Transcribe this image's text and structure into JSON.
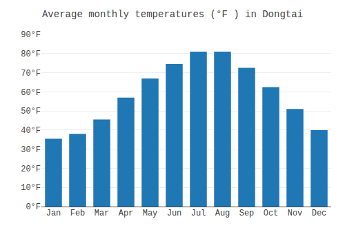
{
  "chart_data": {
    "type": "bar",
    "title": "Average monthly temperatures (°F ) in Dongtai",
    "categories": [
      "Jan",
      "Feb",
      "Mar",
      "Apr",
      "May",
      "Jun",
      "Jul",
      "Aug",
      "Sep",
      "Oct",
      "Nov",
      "Dec"
    ],
    "values": [
      35.5,
      38,
      45.5,
      57,
      67,
      74.5,
      81,
      81,
      72.5,
      62.5,
      51,
      40
    ],
    "ylim": [
      0,
      90
    ],
    "yticks": [
      {
        "value": 0,
        "label": "0°F"
      },
      {
        "value": 10,
        "label": "10°F"
      },
      {
        "value": 20,
        "label": "20°F"
      },
      {
        "value": 30,
        "label": "30°F"
      },
      {
        "value": 40,
        "label": "40°F"
      },
      {
        "value": 50,
        "label": "50°F"
      },
      {
        "value": 60,
        "label": "60°F"
      },
      {
        "value": 70,
        "label": "70°F"
      },
      {
        "value": 80,
        "label": "80°F"
      },
      {
        "value": 90,
        "label": "90°F"
      }
    ],
    "grid": true
  }
}
